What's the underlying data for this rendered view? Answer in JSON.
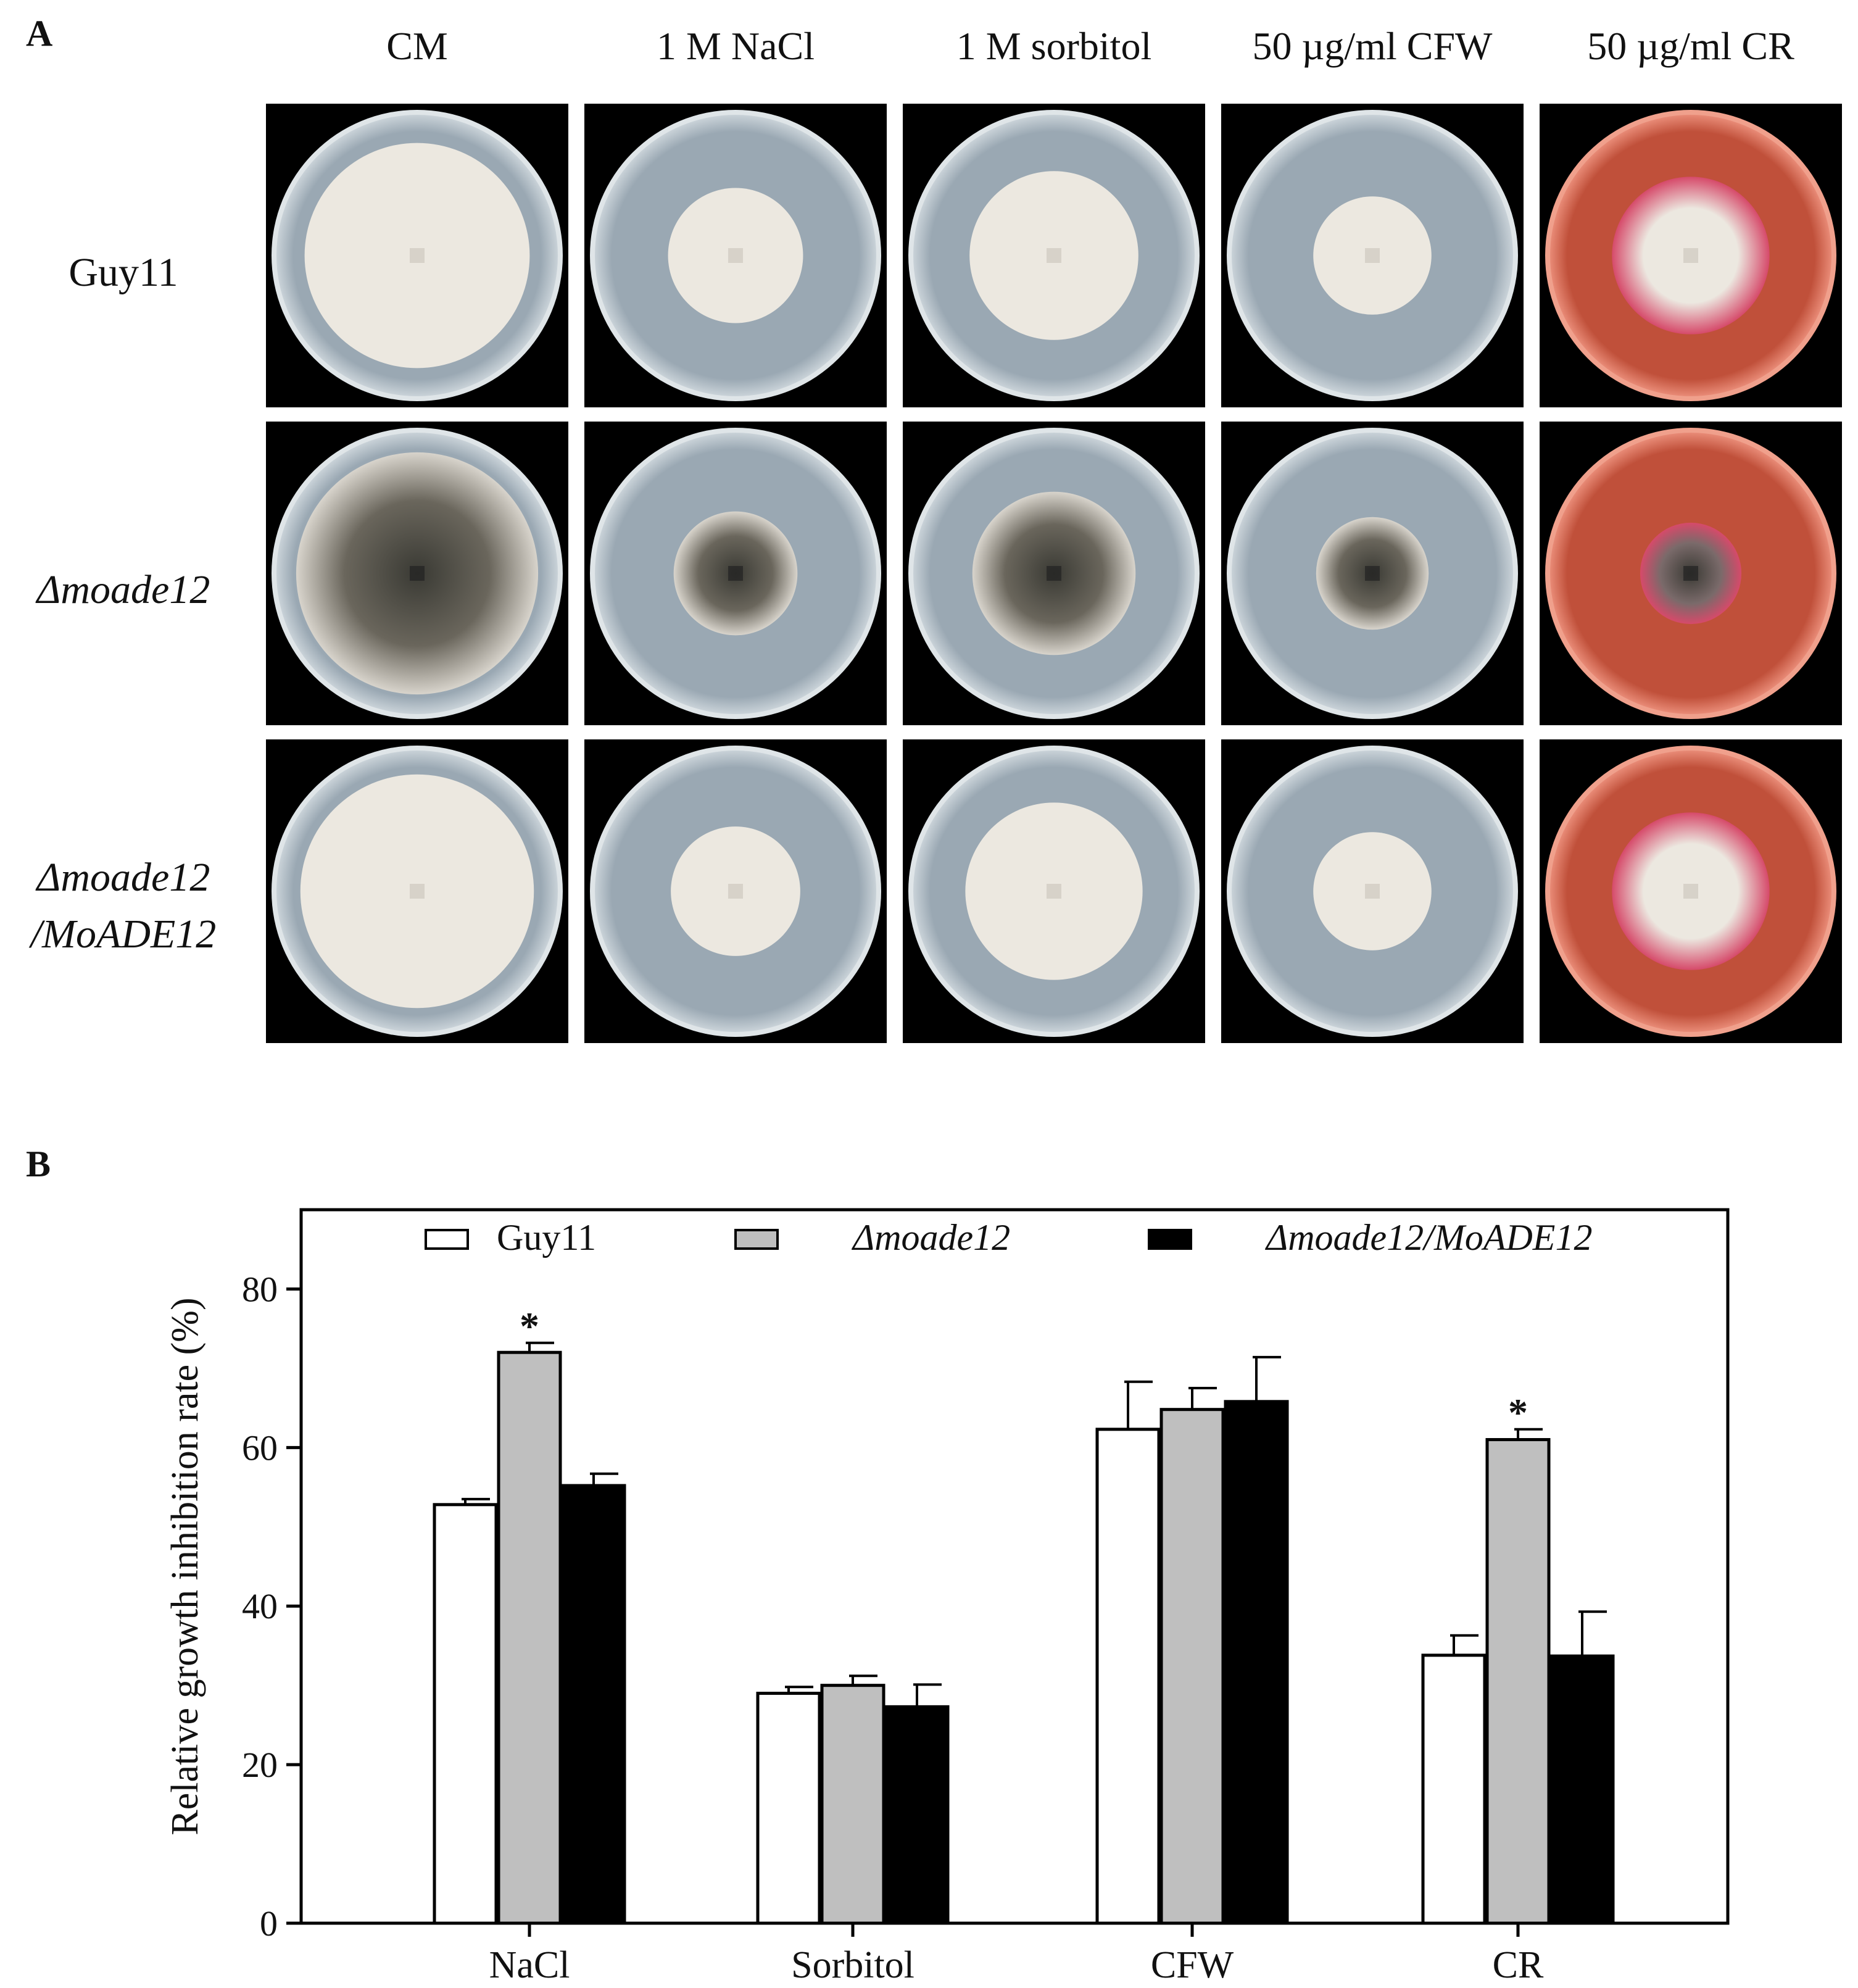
{
  "panel_a": {
    "label": "A",
    "columns": [
      "CM",
      "1 M NaCl",
      "1 M sorbitol",
      "50 µg/ml CFW",
      "50 µg/ml CR"
    ],
    "rows": [
      {
        "lines": [
          "Guy11"
        ],
        "italic": false
      },
      {
        "lines": [
          "Δmoade12"
        ],
        "italic": true
      },
      {
        "lines": [
          "Δmoade12",
          "/MoADE12"
        ],
        "italic": true
      }
    ],
    "plate_colors": {
      "background": "#000000",
      "agar_gray": "#9aa8b3",
      "agar_rim": "#c9d2d8",
      "agar_red": "#c0503a",
      "agar_red_rim": "#e88a76",
      "colony_white": "#ece8e0",
      "colony_dark": "#3a3a34",
      "colony_pink": "#d64a6a"
    },
    "colony_fraction_of_dish": [
      [
        0.8,
        0.48,
        0.6,
        0.42,
        0.56
      ],
      [
        0.86,
        0.44,
        0.58,
        0.4,
        0.36
      ],
      [
        0.83,
        0.46,
        0.63,
        0.42,
        0.56
      ]
    ]
  },
  "panel_b": {
    "label": "B",
    "chart_data": {
      "type": "bar",
      "categories": [
        "NaCl",
        "Sorbitol",
        "CFW",
        "CR"
      ],
      "series": [
        {
          "name": "Guy11",
          "italic": false,
          "color": "#ffffff",
          "values": [
            52.8,
            29.0,
            62.3,
            33.8
          ],
          "errors": [
            0.7,
            0.8,
            6.0,
            2.5
          ]
        },
        {
          "name": "Δmoade12",
          "italic": true,
          "color": "#bfbfbf",
          "values": [
            72.0,
            30.0,
            64.8,
            61.0
          ],
          "errors": [
            1.2,
            1.2,
            2.7,
            1.3
          ]
        },
        {
          "name": "Δmoade12/MoADE12",
          "italic": true,
          "color": "#000000",
          "values": [
            55.2,
            27.3,
            65.8,
            33.7
          ],
          "errors": [
            1.5,
            2.8,
            5.6,
            5.6
          ]
        }
      ],
      "significance": [
        {
          "category": "NaCl",
          "series": "Δmoade12",
          "mark": "*"
        },
        {
          "category": "CR",
          "series": "Δmoade12",
          "mark": "*"
        }
      ],
      "ylabel": "Relative growth inhibition rate (%)",
      "xlabel": "",
      "ylim": [
        0,
        90
      ],
      "yticks": [
        0,
        20,
        40,
        60,
        80
      ],
      "legend_position": "top",
      "grid": false
    }
  }
}
